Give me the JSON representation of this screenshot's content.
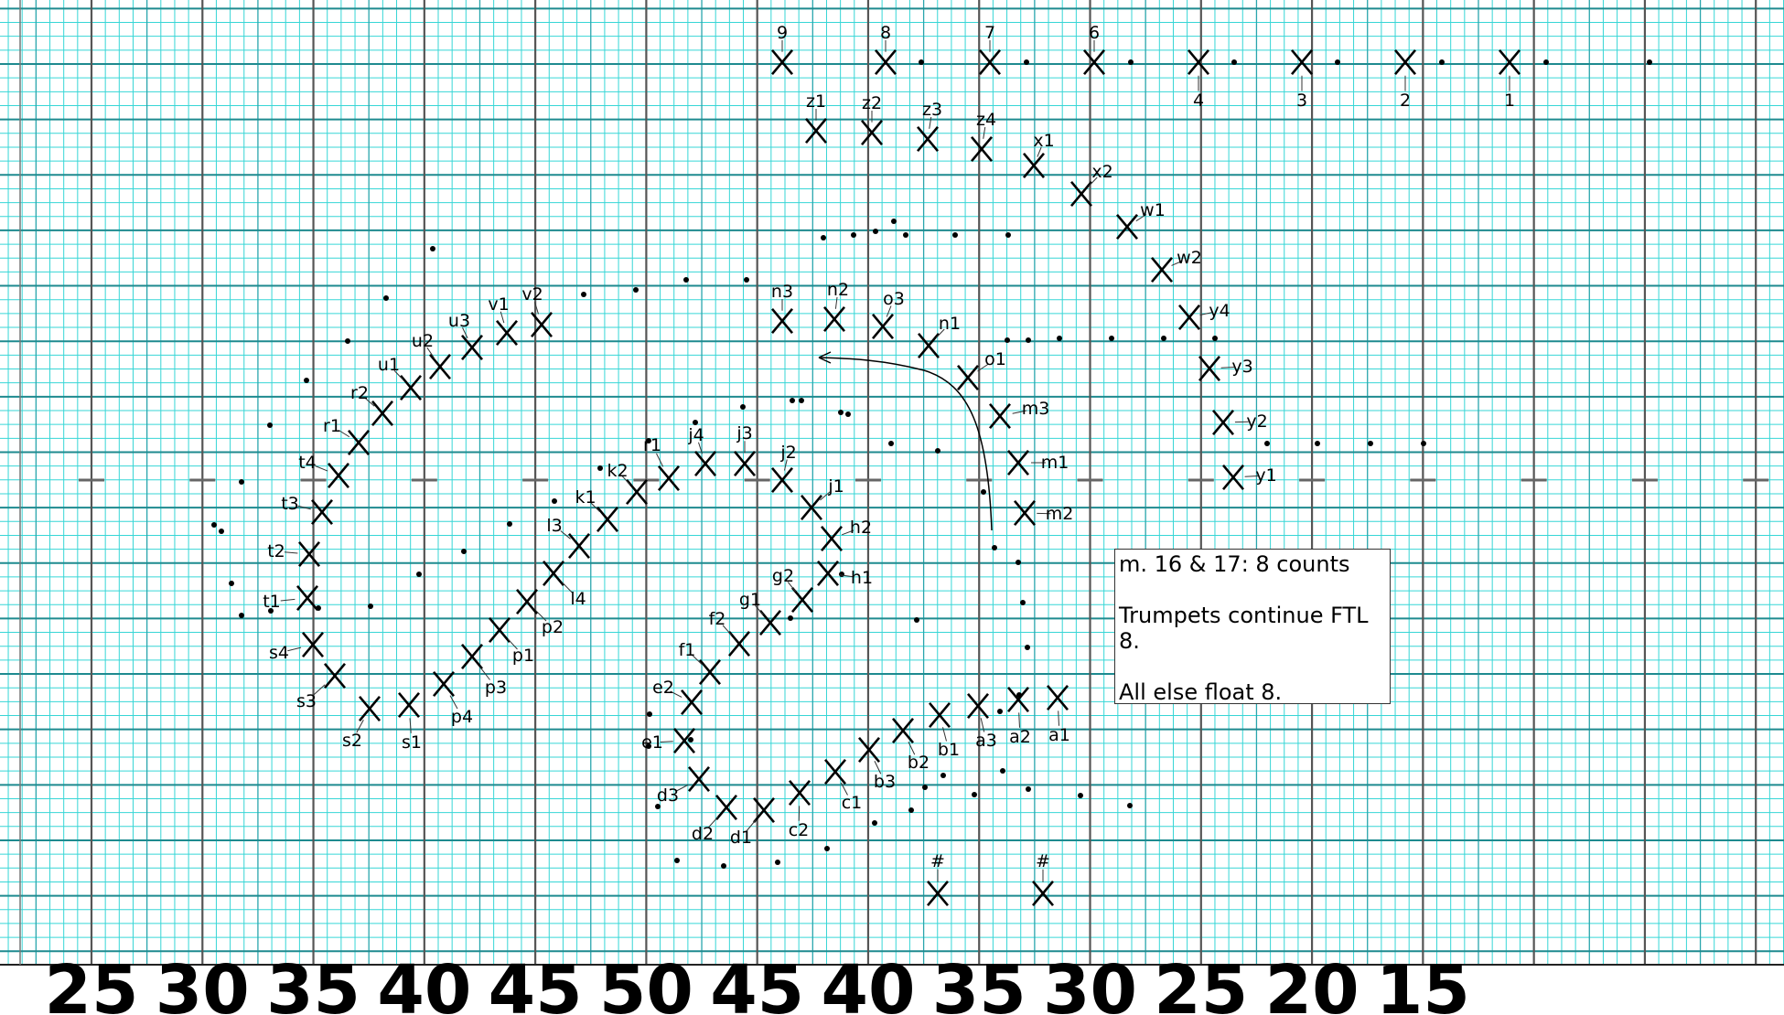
{
  "yard_labels": [
    "25",
    "30",
    "35",
    "40",
    "45",
    "50",
    "45",
    "40",
    "35",
    "30",
    "25",
    "20",
    "15"
  ],
  "note": {
    "line1": "m. 16 & 17: 8 counts",
    "line2": "Trumpets continue FTL 8.",
    "line3": "All else float 8."
  },
  "markers": [
    {
      "label": "9"
    },
    {
      "label": "8"
    },
    {
      "label": "7"
    },
    {
      "label": "6"
    },
    {
      "label": "4"
    },
    {
      "label": "3"
    },
    {
      "label": "2"
    },
    {
      "label": "1"
    },
    {
      "label": "z1"
    },
    {
      "label": "z2"
    },
    {
      "label": "z3"
    },
    {
      "label": "z4"
    },
    {
      "label": "x1"
    },
    {
      "label": "x2"
    },
    {
      "label": "w1"
    },
    {
      "label": "w2"
    },
    {
      "label": "y4"
    },
    {
      "label": "y3"
    },
    {
      "label": "y2"
    },
    {
      "label": "y1"
    },
    {
      "label": "n3"
    },
    {
      "label": "n2"
    },
    {
      "label": "o3"
    },
    {
      "label": "n1"
    },
    {
      "label": "o1"
    },
    {
      "label": "m3"
    },
    {
      "label": "m1"
    },
    {
      "label": "m2"
    },
    {
      "label": "v2"
    },
    {
      "label": "v1"
    },
    {
      "label": "u3"
    },
    {
      "label": "u2"
    },
    {
      "label": "u1"
    },
    {
      "label": "r2"
    },
    {
      "label": "r1"
    },
    {
      "label": "t4"
    },
    {
      "label": "t3"
    },
    {
      "label": "t2"
    },
    {
      "label": "t1"
    },
    {
      "label": "s4"
    },
    {
      "label": "s3"
    },
    {
      "label": "s2"
    },
    {
      "label": "s1"
    },
    {
      "label": "p4"
    },
    {
      "label": "p3"
    },
    {
      "label": "p1"
    },
    {
      "label": "p2"
    },
    {
      "label": "l4"
    },
    {
      "label": "l3"
    },
    {
      "label": "k1"
    },
    {
      "label": "k2"
    },
    {
      "label": "r1"
    },
    {
      "label": "j4"
    },
    {
      "label": "j3"
    },
    {
      "label": "j2"
    },
    {
      "label": "j1"
    },
    {
      "label": "h2"
    },
    {
      "label": "h1"
    },
    {
      "label": "g2"
    },
    {
      "label": "g1"
    },
    {
      "label": "f2"
    },
    {
      "label": "f1"
    },
    {
      "label": "e2"
    },
    {
      "label": "e1"
    },
    {
      "label": "d3"
    },
    {
      "label": "d2"
    },
    {
      "label": "d1"
    },
    {
      "label": "c2"
    },
    {
      "label": "c1"
    },
    {
      "label": "b3"
    },
    {
      "label": "b2"
    },
    {
      "label": "b1"
    },
    {
      "label": "a3"
    },
    {
      "label": "a2"
    },
    {
      "label": "a1"
    },
    {
      "label": "#"
    },
    {
      "label": "#"
    }
  ]
}
